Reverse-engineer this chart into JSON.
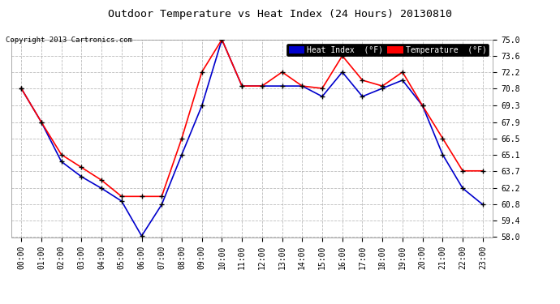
{
  "title": "Outdoor Temperature vs Heat Index (24 Hours) 20130810",
  "copyright": "Copyright 2013 Cartronics.com",
  "x_labels": [
    "00:00",
    "01:00",
    "02:00",
    "03:00",
    "04:00",
    "05:00",
    "06:00",
    "07:00",
    "08:00",
    "09:00",
    "10:00",
    "11:00",
    "12:00",
    "13:00",
    "14:00",
    "15:00",
    "16:00",
    "17:00",
    "18:00",
    "19:00",
    "20:00",
    "21:00",
    "22:00",
    "23:00"
  ],
  "y_ticks": [
    58.0,
    59.4,
    60.8,
    62.2,
    63.7,
    65.1,
    66.5,
    67.9,
    69.3,
    70.8,
    72.2,
    73.6,
    75.0
  ],
  "ylim": [
    58.0,
    75.0
  ],
  "temperature": [
    70.8,
    67.9,
    65.1,
    64.0,
    62.9,
    61.5,
    61.5,
    61.5,
    66.5,
    72.2,
    75.0,
    71.0,
    71.0,
    72.2,
    71.0,
    70.8,
    73.6,
    71.5,
    71.0,
    72.2,
    69.3,
    66.5,
    63.7,
    63.7
  ],
  "heat_index": [
    70.8,
    67.9,
    64.5,
    63.2,
    62.2,
    61.1,
    58.1,
    60.8,
    65.1,
    69.3,
    75.0,
    71.0,
    71.0,
    71.0,
    71.0,
    70.1,
    72.2,
    70.1,
    70.8,
    71.5,
    69.3,
    65.1,
    62.2,
    60.8
  ],
  "temp_color": "#ff0000",
  "heat_color": "#0000cc",
  "bg_color": "#ffffff",
  "plot_bg_color": "#ffffff",
  "grid_color": "#aaaaaa",
  "legend_heat_bg": "#0000cc",
  "legend_temp_bg": "#ff0000",
  "legend_text_color": "#ffffff",
  "title_color": "#000000",
  "copyright_color": "#000000",
  "marker": "+",
  "marker_color": "#000000",
  "marker_size": 5,
  "line_width": 1.2
}
